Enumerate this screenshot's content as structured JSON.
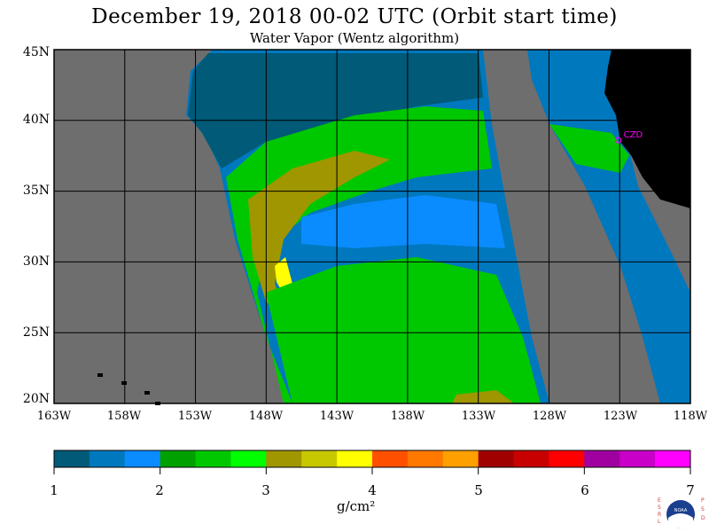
{
  "title": "December 19, 2018  00-02 UTC  (Orbit start time)",
  "subtitle": "Water Vapor (Wentz algorithm)",
  "station": {
    "label": "CZD",
    "lon": -123.1,
    "lat": 38.6,
    "color": "#ff00ff"
  },
  "map": {
    "lon_range": [
      -163,
      -118
    ],
    "lat_range": [
      20,
      45
    ],
    "grid_lons": [
      -163,
      -158,
      -153,
      -148,
      -143,
      -138,
      -133,
      -128,
      -123,
      -118
    ],
    "grid_lats": [
      20,
      25,
      30,
      35,
      40,
      45
    ],
    "lon_labels": [
      "163W",
      "158W",
      "153W",
      "148W",
      "143W",
      "138W",
      "133W",
      "128W",
      "123W",
      "118W"
    ],
    "lat_labels": [
      "20N",
      "25N",
      "30N",
      "35N",
      "40N",
      "45N"
    ],
    "land_color": "#000000",
    "nodata_color": "#6e6e6e"
  },
  "colorbar": {
    "ticks": [
      "1",
      "2",
      "3",
      "4",
      "5",
      "6",
      "7"
    ],
    "unit": "g/cm²",
    "colors": [
      "#005a78",
      "#0078be",
      "#0a8cff",
      "#00a000",
      "#00c800",
      "#00ff00",
      "#a09600",
      "#c8c800",
      "#ffff00",
      "#ff5000",
      "#ff7800",
      "#ffa000",
      "#a00000",
      "#c80000",
      "#ff0000",
      "#a000a0",
      "#c800c8",
      "#ff00ff"
    ]
  },
  "logo": {
    "left_text": "ESRL",
    "right_text": "PSD",
    "center_text": "NOAA"
  }
}
